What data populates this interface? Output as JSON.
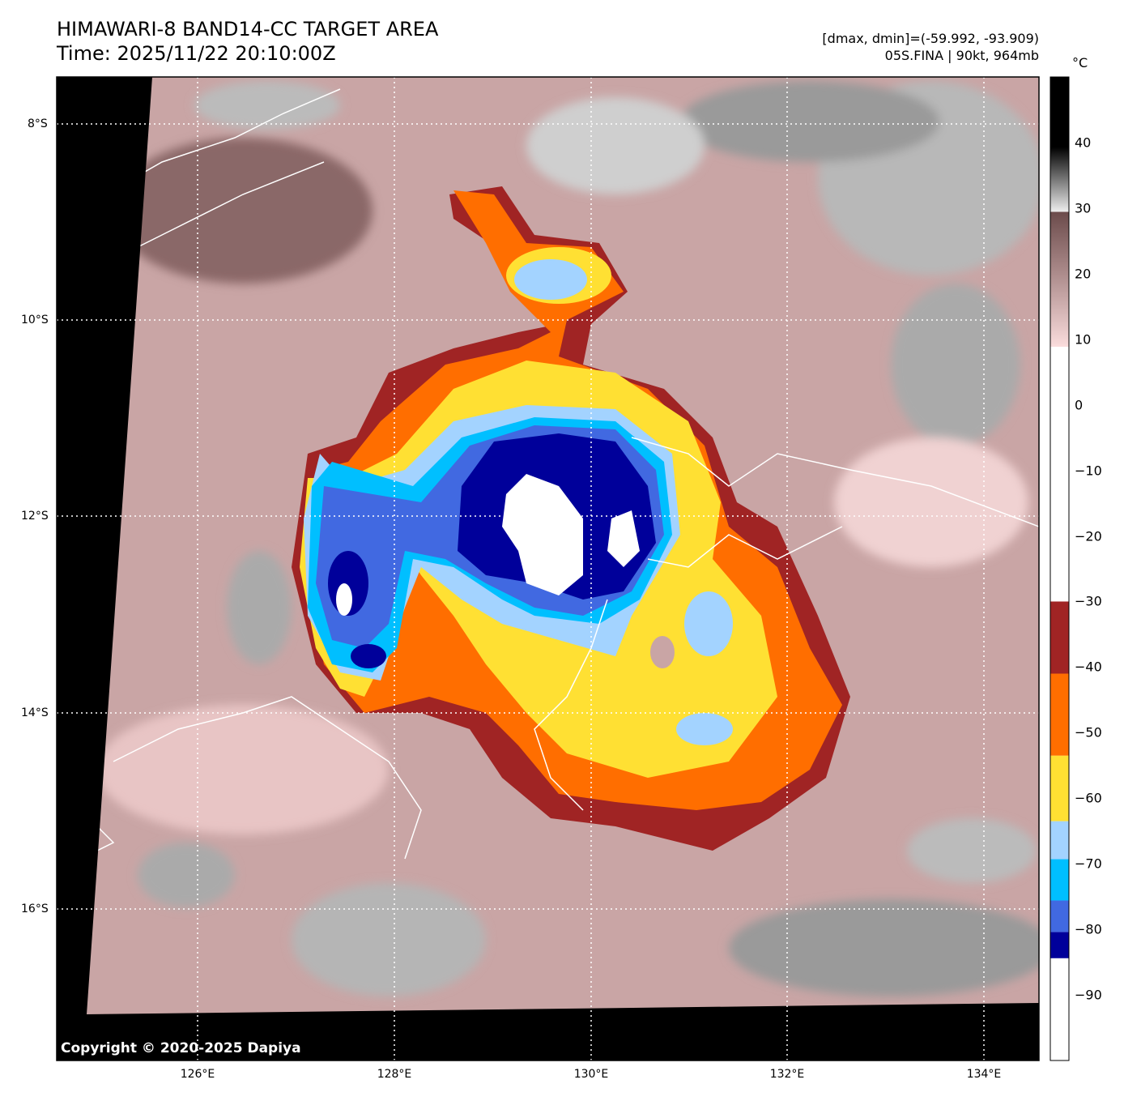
{
  "header": {
    "title": "HIMAWARI-8 BAND14-CC TARGET AREA",
    "time": "Time: 2025/11/22 20:10:00Z",
    "range": "[dmax, dmin]=(-59.992, -93.909)",
    "storm": "05S.FINA | 90kt, 964mb"
  },
  "map": {
    "lon_ticks": [
      "126°E",
      "128°E",
      "130°E",
      "132°E",
      "134°E"
    ],
    "lat_ticks": [
      "8°S",
      "10°S",
      "12°S",
      "14°S",
      "16°S"
    ],
    "copyright": "Copyright © 2020-2025 Dapiya"
  },
  "colorbar": {
    "unit": "°C",
    "range": [
      -100,
      50
    ],
    "ticks": [
      "40",
      "30",
      "20",
      "10",
      "0",
      "−10",
      "−20",
      "−30",
      "−40",
      "−50",
      "−60",
      "−70",
      "−80",
      "−90"
    ],
    "bands": [
      {
        "from": -100,
        "to": -84.4,
        "color": "#ffffff"
      },
      {
        "from": -84.4,
        "to": -80.4,
        "color": "#00009a"
      },
      {
        "from": -80.4,
        "to": -75.6,
        "color": "#4169e1"
      },
      {
        "from": -75.6,
        "to": -69.3,
        "color": "#00bfff"
      },
      {
        "from": -69.3,
        "to": -63.5,
        "color": "#a3d3ff"
      },
      {
        "from": -63.5,
        "to": -53.5,
        "color": "#ffe033"
      },
      {
        "from": -53.5,
        "to": -41,
        "color": "#ff6e00"
      },
      {
        "from": -41,
        "to": -30,
        "color": "#a02424"
      }
    ]
  }
}
